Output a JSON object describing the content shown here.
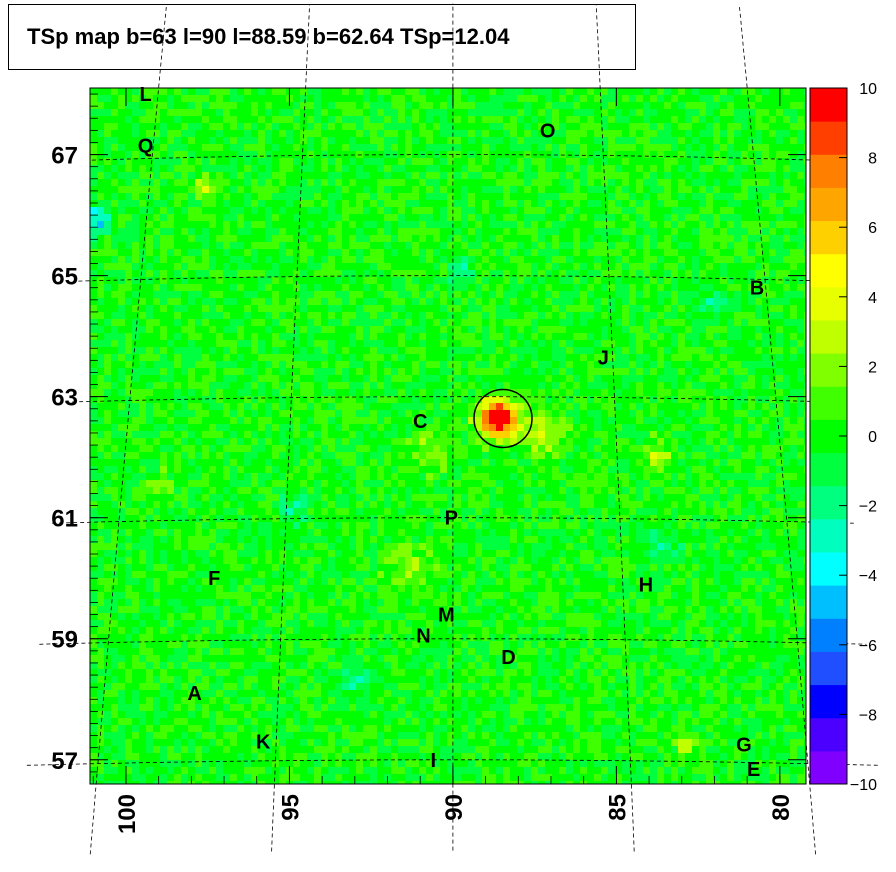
{
  "title": "TSp map b=63 l=90 l=88.59 b=62.64 TSp=12.04",
  "chart_data": {
    "type": "heatmap",
    "title": "TSp map b=63 l=90 l=88.59 b=62.64 TSp=12.04",
    "x_reversed": true,
    "xlim": [
      79.2,
      101.1
    ],
    "ylim": [
      56.6,
      68.1
    ],
    "x_ticks": [
      "100",
      "95",
      "90",
      "85",
      "80"
    ],
    "x_tick_values": [
      100,
      95,
      90,
      85,
      80
    ],
    "y_ticks": [
      "67",
      "65",
      "63",
      "61",
      "59",
      "57"
    ],
    "y_tick_values": [
      67,
      65,
      63,
      61,
      59,
      57
    ],
    "zlim": [
      -10,
      10
    ],
    "colorbar_ticks": [
      "10",
      "8",
      "6",
      "4",
      "2",
      "0",
      "−2",
      "−4",
      "−6",
      "−8",
      "−10"
    ],
    "colorbar_tick_values": [
      10,
      8,
      6,
      4,
      2,
      0,
      -2,
      -4,
      -6,
      -8,
      -10
    ],
    "background_value": 0,
    "peak": {
      "l": 88.59,
      "b": 62.64,
      "ts": 12.04,
      "circle_radius_deg": 0.9
    },
    "sources": [
      {
        "label": "L",
        "l": 99.4,
        "b": 68.0
      },
      {
        "label": "Q",
        "l": 99.4,
        "b": 67.15
      },
      {
        "label": "O",
        "l": 87.1,
        "b": 67.4
      },
      {
        "label": "B",
        "l": 80.7,
        "b": 64.8
      },
      {
        "label": "J",
        "l": 85.4,
        "b": 63.65
      },
      {
        "label": "C",
        "l": 91.0,
        "b": 62.6
      },
      {
        "label": "P",
        "l": 90.05,
        "b": 61.0
      },
      {
        "label": "F",
        "l": 97.3,
        "b": 60.0
      },
      {
        "label": "H",
        "l": 84.1,
        "b": 59.9
      },
      {
        "label": "M",
        "l": 90.2,
        "b": 59.4
      },
      {
        "label": "N",
        "l": 90.9,
        "b": 59.05
      },
      {
        "label": "D",
        "l": 88.3,
        "b": 58.7
      },
      {
        "label": "A",
        "l": 97.9,
        "b": 58.1
      },
      {
        "label": "K",
        "l": 95.8,
        "b": 57.3
      },
      {
        "label": "I",
        "l": 90.6,
        "b": 57.0
      },
      {
        "label": "G",
        "l": 81.1,
        "b": 57.25
      },
      {
        "label": "E",
        "l": 80.8,
        "b": 56.85
      }
    ],
    "grid": true
  },
  "colors": {
    "palette": [
      "#7F00FF",
      "#4B00FF",
      "#0000FF",
      "#1F4FFF",
      "#007FFF",
      "#00BFFF",
      "#00FFFF",
      "#00FFBF",
      "#00FF7F",
      "#00FF3F",
      "#00FF00",
      "#3FFF00",
      "#7FFF00",
      "#BFFF00",
      "#E8FF00",
      "#FFFF00",
      "#FFD000",
      "#FFA500",
      "#FF7F00",
      "#FF3F00",
      "#FF0000"
    ]
  }
}
